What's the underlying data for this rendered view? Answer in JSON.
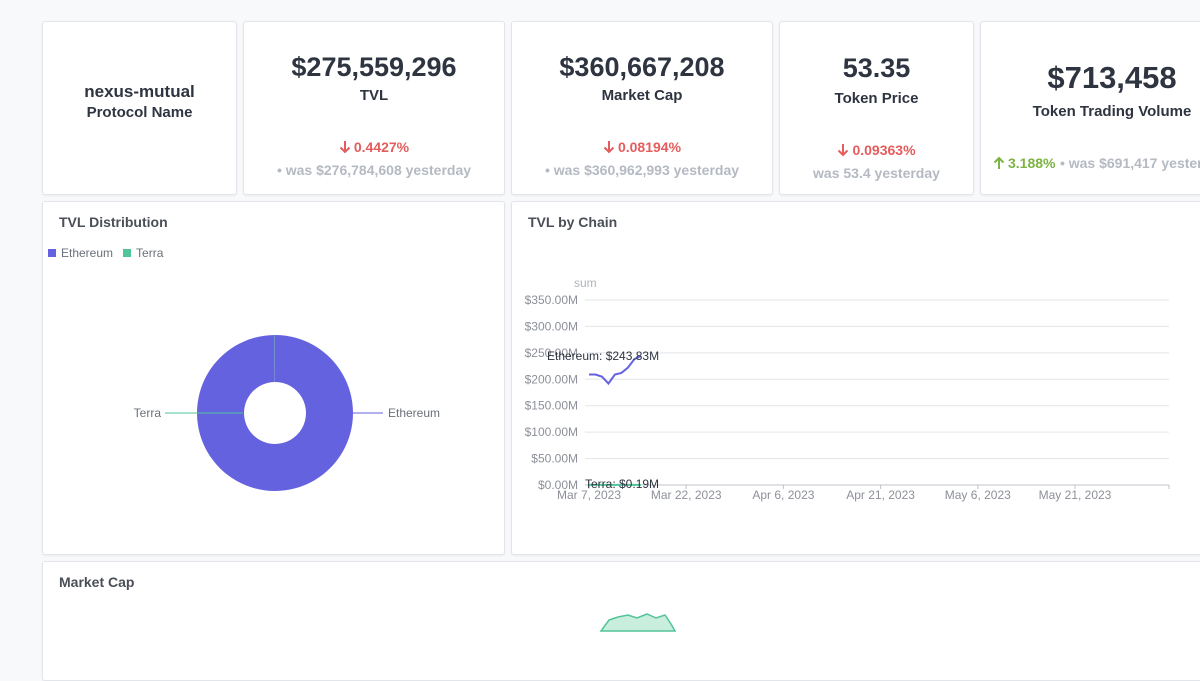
{
  "protocol": {
    "name": "nexus-mutual",
    "label": "Protocol Name"
  },
  "tvl": {
    "value": "$275,559,296",
    "label": "TVL",
    "change": "0.4427%",
    "direction": "down",
    "was_prefix": "• was $276,784,608",
    "was_suffix": "yesterday"
  },
  "market_cap": {
    "value": "$360,667,208",
    "label": "Market Cap",
    "change": "0.08194%",
    "direction": "down",
    "was_prefix": "• was $360,962,993",
    "was_suffix": "yesterday"
  },
  "token_price": {
    "value": "53.35",
    "label": "Token Price",
    "change": "0.09363%",
    "direction": "down",
    "was_prefix": "was 53.4",
    "was_suffix": "yesterday"
  },
  "trading_volume": {
    "value": "$713,458",
    "label": "Token Trading Volume",
    "change": "3.188%",
    "direction": "up",
    "was_prefix": "• was $691,417",
    "was_suffix": "yesterday"
  },
  "colors": {
    "ethereum": "#6562e0",
    "terra": "#52c49a",
    "down": "#e45c5c",
    "up": "#7cb342"
  },
  "tvl_distribution": {
    "title": "TVL Distribution",
    "legend": [
      "Ethereum",
      "Terra"
    ],
    "slices": [
      {
        "name": "Ethereum",
        "label": "Ethereum",
        "value": 243.83
      },
      {
        "name": "Terra",
        "label": "Terra",
        "value": 0.19
      }
    ]
  },
  "tvl_by_chain": {
    "title": "TVL by Chain",
    "axis_title": "sum",
    "y_ticks": [
      "$0.00M",
      "$50.00M",
      "$100.00M",
      "$150.00M",
      "$200.00M",
      "$250.00M",
      "$300.00M",
      "$350.00M"
    ],
    "x_ticks": [
      "Mar 7, 2023",
      "Mar 22, 2023",
      "Apr 6, 2023",
      "Apr 21, 2023",
      "May 6, 2023",
      "May 21, 2023"
    ],
    "ethereum_label": "Ethereum: $243.83M",
    "terra_label": "Terra: $0.19M"
  },
  "market_cap_panel": {
    "title": "Market Cap"
  },
  "chart_data": [
    {
      "type": "pie",
      "title": "TVL Distribution",
      "categories": [
        "Ethereum",
        "Terra"
      ],
      "values": [
        243.83,
        0.19
      ],
      "legend": "top-left"
    },
    {
      "type": "line",
      "title": "TVL by Chain",
      "ylabel": "sum",
      "ylim": [
        0,
        350
      ],
      "x": [
        "2023-03-07",
        "2023-03-08",
        "2023-03-09",
        "2023-03-10",
        "2023-03-11",
        "2023-03-12",
        "2023-03-13",
        "2023-03-14",
        "2023-03-15"
      ],
      "series": [
        {
          "name": "Ethereum",
          "values": [
            209,
            209,
            205,
            192,
            209,
            212,
            222,
            238,
            244
          ]
        },
        {
          "name": "Terra",
          "values": [
            0.2,
            0.2,
            0.2,
            0.2,
            0.2,
            0.2,
            0.2,
            0.2,
            0.19
          ]
        }
      ],
      "x_tick_labels": [
        "Mar 7, 2023",
        "Mar 22, 2023",
        "Apr 6, 2023",
        "Apr 21, 2023",
        "May 6, 2023",
        "May 21, 2023"
      ],
      "grid": true
    }
  ]
}
